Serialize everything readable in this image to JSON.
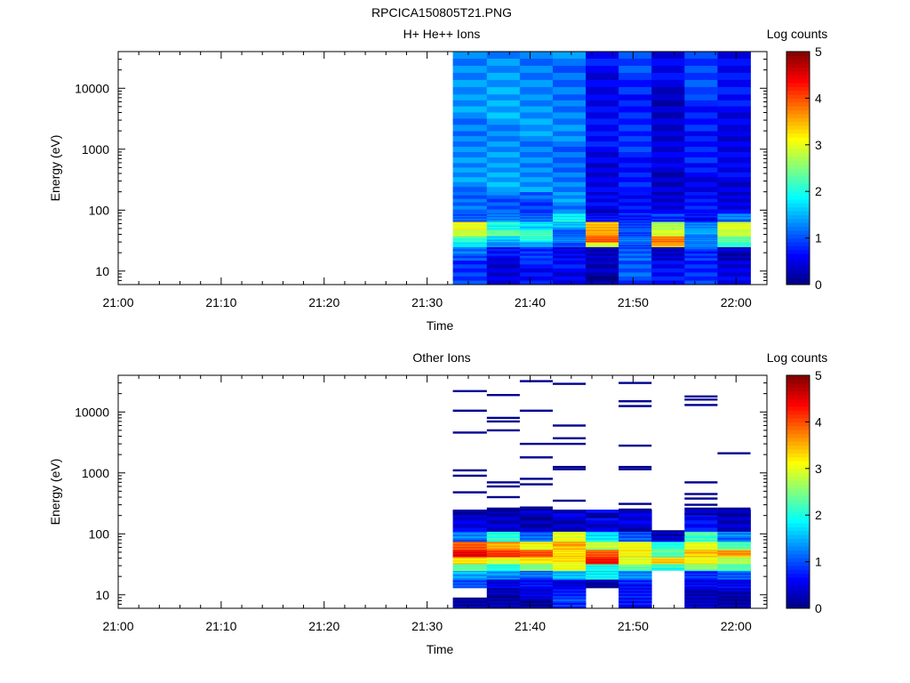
{
  "figure_title": "RPCICA150805T21.PNG",
  "chart_data": [
    {
      "type": "heatmap",
      "title": "H+ He++ Ions",
      "xlabel": "Time",
      "ylabel": "Energy (eV)",
      "x_ticks": [
        "21:00",
        "21:10",
        "21:20",
        "21:30",
        "21:40",
        "21:50",
        "22:00"
      ],
      "x_tick_minutes": [
        0,
        10,
        20,
        30,
        40,
        50,
        60
      ],
      "xlim_minutes": [
        0,
        63
      ],
      "yscale": "log",
      "ylim": [
        6,
        40000
      ],
      "y_ticks": [
        10,
        100,
        1000,
        10000
      ],
      "y_tick_labels": [
        "10",
        "100",
        "1000",
        "10000"
      ],
      "colorbar": {
        "label": "Log counts",
        "range": [
          0,
          5
        ],
        "ticks": [
          "0",
          "1",
          "2",
          "3",
          "4",
          "5"
        ]
      },
      "time_bins_minutes": [
        [
          32.5,
          35.8
        ],
        [
          35.8,
          39.0
        ],
        [
          39.0,
          42.2
        ],
        [
          42.2,
          45.4
        ],
        [
          45.4,
          48.6
        ],
        [
          48.6,
          51.8
        ],
        [
          51.8,
          55.0
        ],
        [
          55.0,
          58.2
        ],
        [
          58.2,
          61.4
        ]
      ],
      "energy_bands_eV": [
        {
          "range": [
            6,
            15
          ],
          "values": [
            0.9,
            0.5,
            0.7,
            0.6,
            0.2,
            1.0,
            0.6,
            0.8,
            0.5
          ]
        },
        {
          "range": [
            15,
            25
          ],
          "values": [
            1.1,
            0.6,
            0.8,
            0.5,
            0.3,
            1.1,
            0.4,
            0.9,
            0.3
          ]
        },
        {
          "range": [
            25,
            30
          ],
          "values": [
            1.8,
            1.3,
            1.5,
            1.0,
            3.0,
            1.0,
            3.5,
            1.2,
            2.0
          ]
        },
        {
          "range": [
            30,
            38
          ],
          "values": [
            2.2,
            1.6,
            2.0,
            1.2,
            3.9,
            1.2,
            3.8,
            1.3,
            2.4
          ]
        },
        {
          "range": [
            38,
            48
          ],
          "values": [
            2.8,
            2.4,
            2.2,
            1.1,
            3.6,
            1.0,
            2.9,
            1.4,
            2.8
          ]
        },
        {
          "range": [
            48,
            65
          ],
          "values": [
            3.1,
            2.0,
            1.7,
            1.5,
            3.4,
            0.9,
            2.7,
            1.3,
            3.0
          ]
        },
        {
          "range": [
            65,
            90
          ],
          "values": [
            1.0,
            1.2,
            1.1,
            1.9,
            0.7,
            0.8,
            0.9,
            0.6,
            1.2
          ]
        },
        {
          "range": [
            90,
            200
          ],
          "values": [
            1.2,
            1.1,
            1.0,
            1.3,
            0.5,
            0.6,
            0.4,
            0.7,
            0.5
          ]
        },
        {
          "range": [
            200,
            600
          ],
          "values": [
            1.3,
            1.4,
            1.3,
            1.2,
            0.5,
            0.8,
            0.4,
            0.6,
            0.5
          ]
        },
        {
          "range": [
            600,
            2000
          ],
          "values": [
            1.3,
            1.4,
            1.3,
            1.2,
            0.6,
            0.8,
            0.4,
            0.7,
            0.5
          ]
        },
        {
          "range": [
            2000,
            8000
          ],
          "values": [
            1.3,
            1.4,
            1.3,
            1.2,
            0.6,
            0.8,
            0.4,
            0.8,
            0.6
          ]
        },
        {
          "range": [
            8000,
            40000
          ],
          "values": [
            1.3,
            1.4,
            1.3,
            1.2,
            0.6,
            0.9,
            0.5,
            0.9,
            0.6
          ]
        }
      ]
    },
    {
      "type": "heatmap",
      "title": "Other Ions",
      "xlabel": "Time",
      "ylabel": "Energy (eV)",
      "x_ticks": [
        "21:00",
        "21:10",
        "21:20",
        "21:30",
        "21:40",
        "21:50",
        "22:00"
      ],
      "x_tick_minutes": [
        0,
        10,
        20,
        30,
        40,
        50,
        60
      ],
      "xlim_minutes": [
        0,
        63
      ],
      "yscale": "log",
      "ylim": [
        6,
        40000
      ],
      "y_ticks": [
        10,
        100,
        1000,
        10000
      ],
      "y_tick_labels": [
        "10",
        "100",
        "1000",
        "10000"
      ],
      "colorbar": {
        "label": "Log counts",
        "range": [
          0,
          5
        ],
        "ticks": [
          "0",
          "1",
          "2",
          "3",
          "4",
          "5"
        ]
      },
      "time_bins_minutes": [
        [
          32.5,
          35.8
        ],
        [
          35.8,
          39.0
        ],
        [
          39.0,
          42.2
        ],
        [
          42.2,
          45.4
        ],
        [
          45.4,
          48.6
        ],
        [
          48.6,
          51.8
        ],
        [
          51.8,
          55.0
        ],
        [
          55.0,
          58.2
        ],
        [
          58.2,
          61.4
        ]
      ],
      "energy_bands_eV": [
        {
          "range": [
            6,
            9
          ],
          "values": [
            0.2,
            0.3,
            0.2,
            0.9,
            null,
            0.6,
            null,
            0.3,
            0.2
          ]
        },
        {
          "range": [
            9,
            13
          ],
          "values": [
            null,
            0.2,
            0.4,
            0.7,
            null,
            0.7,
            null,
            0.3,
            0.3
          ]
        },
        {
          "range": [
            13,
            18
          ],
          "values": [
            1.0,
            0.5,
            0.7,
            0.5,
            0.2,
            0.7,
            null,
            0.5,
            0.5
          ]
        },
        {
          "range": [
            18,
            25
          ],
          "values": [
            1.5,
            1.3,
            1.1,
            1.5,
            1.8,
            1.3,
            null,
            0.9,
            1.1
          ]
        },
        {
          "range": [
            25,
            32
          ],
          "values": [
            2.3,
            2.0,
            2.5,
            3.1,
            2.0,
            2.4,
            2.0,
            2.5,
            2.2
          ]
        },
        {
          "range": [
            32,
            42
          ],
          "values": [
            3.3,
            3.0,
            3.2,
            3.2,
            4.3,
            2.9,
            3.4,
            3.1,
            2.8
          ]
        },
        {
          "range": [
            42,
            55
          ],
          "values": [
            4.4,
            4.1,
            4.0,
            3.3,
            4.0,
            3.2,
            2.3,
            3.4,
            3.6
          ]
        },
        {
          "range": [
            55,
            75
          ],
          "values": [
            4.0,
            3.6,
            3.1,
            3.5,
            2.8,
            3.0,
            2.0,
            3.0,
            2.3
          ]
        },
        {
          "range": [
            75,
            110
          ],
          "values": [
            1.2,
            2.0,
            1.1,
            3.0,
            1.8,
            1.1,
            0.4,
            2.2,
            1.2
          ]
        },
        {
          "range": [
            110,
            250
          ],
          "values": [
            0.5,
            0.4,
            0.3,
            0.4,
            0.5,
            0.4,
            null,
            0.6,
            0.3
          ]
        }
      ],
      "sparse_lines_eV": [
        [
          22000,
          4600,
          10500,
          1100,
          900,
          480,
          230,
          210
        ],
        [
          19000,
          8000,
          7000,
          5000,
          700,
          600,
          400,
          260,
          240
        ],
        [
          32000,
          10500,
          3000,
          1800,
          800,
          650,
          270,
          250
        ],
        [
          29000,
          6000,
          3700,
          3000,
          1250,
          1150,
          350,
          230
        ],
        [
          210,
          190
        ],
        [
          30000,
          15000,
          12500,
          2800,
          1250,
          1150,
          310,
          250
        ],
        [
          110,
          95
        ],
        [
          18000,
          16000,
          13000,
          700,
          450,
          380,
          300,
          260,
          210
        ],
        [
          2100,
          260
        ]
      ]
    }
  ]
}
